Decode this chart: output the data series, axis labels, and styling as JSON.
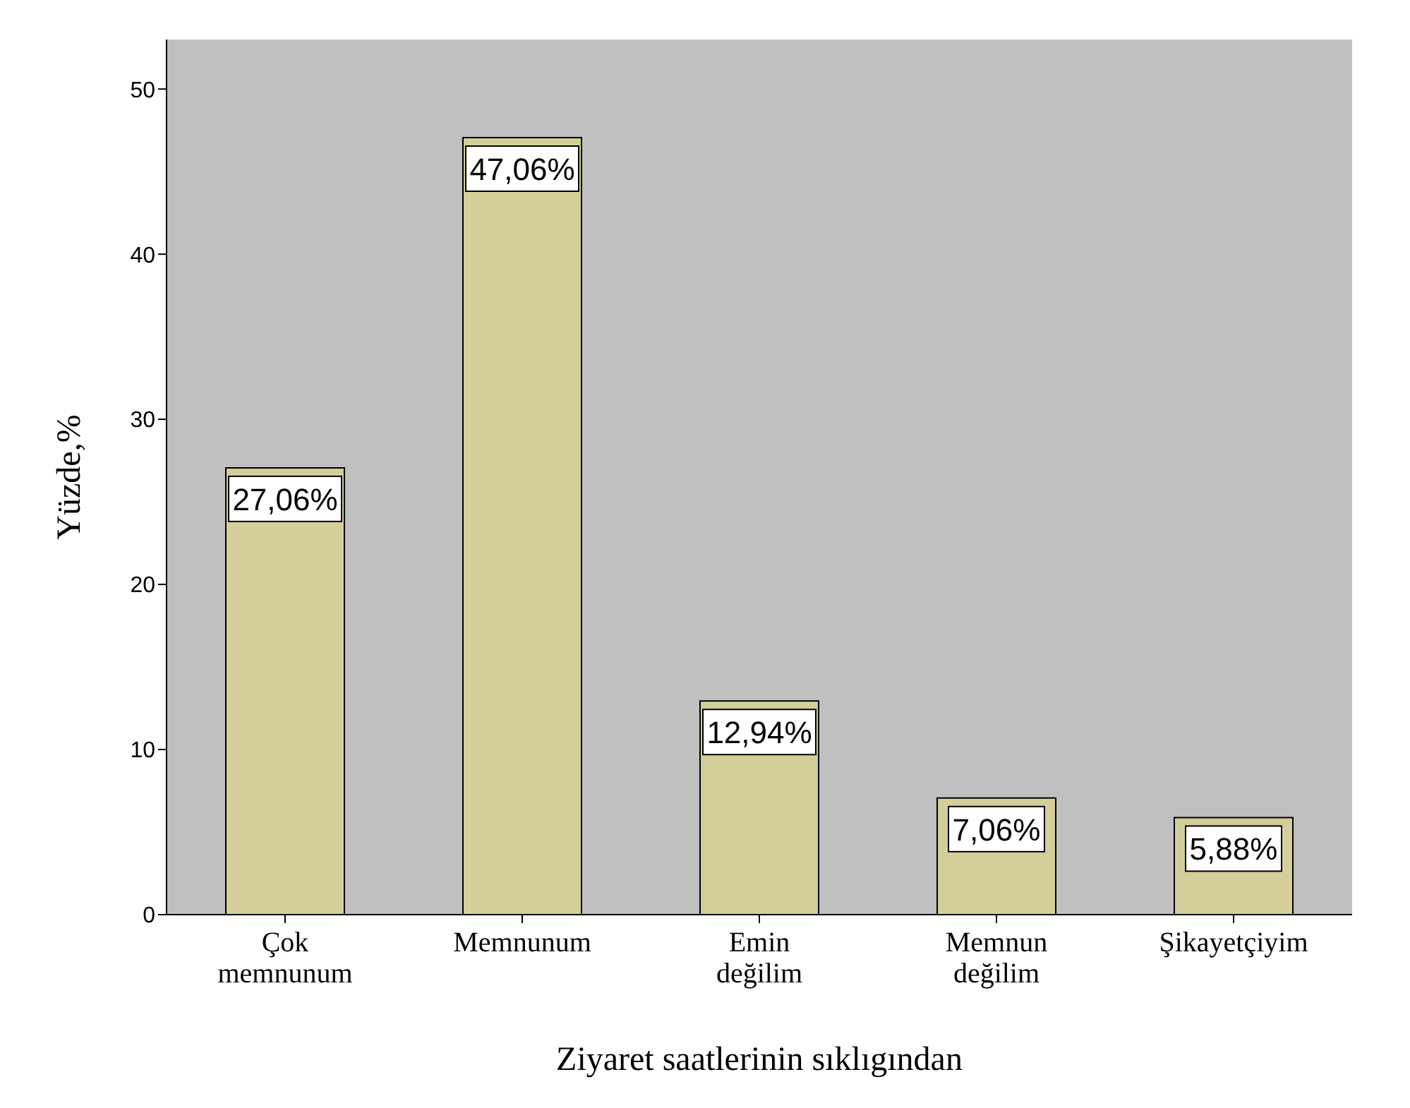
{
  "chart_data": {
    "type": "bar",
    "xlabel": "Ziyaret saatlerinin sıklıgından",
    "ylabel": "Yüzde,%",
    "categories": [
      "Çok memnunum",
      "Memnunum",
      "Emin değilim",
      "Memnun değilim",
      "Şikayetçiyim"
    ],
    "values": [
      27.06,
      47.06,
      12.94,
      7.06,
      5.88
    ],
    "value_labels": [
      "27,06%",
      "47,06%",
      "12,94%",
      "7,06%",
      "5,88%"
    ],
    "color": "#d4cf9a",
    "ylim": [
      0,
      53
    ],
    "yticks": [
      0,
      10,
      20,
      30,
      40,
      50
    ],
    "grid": false
  }
}
